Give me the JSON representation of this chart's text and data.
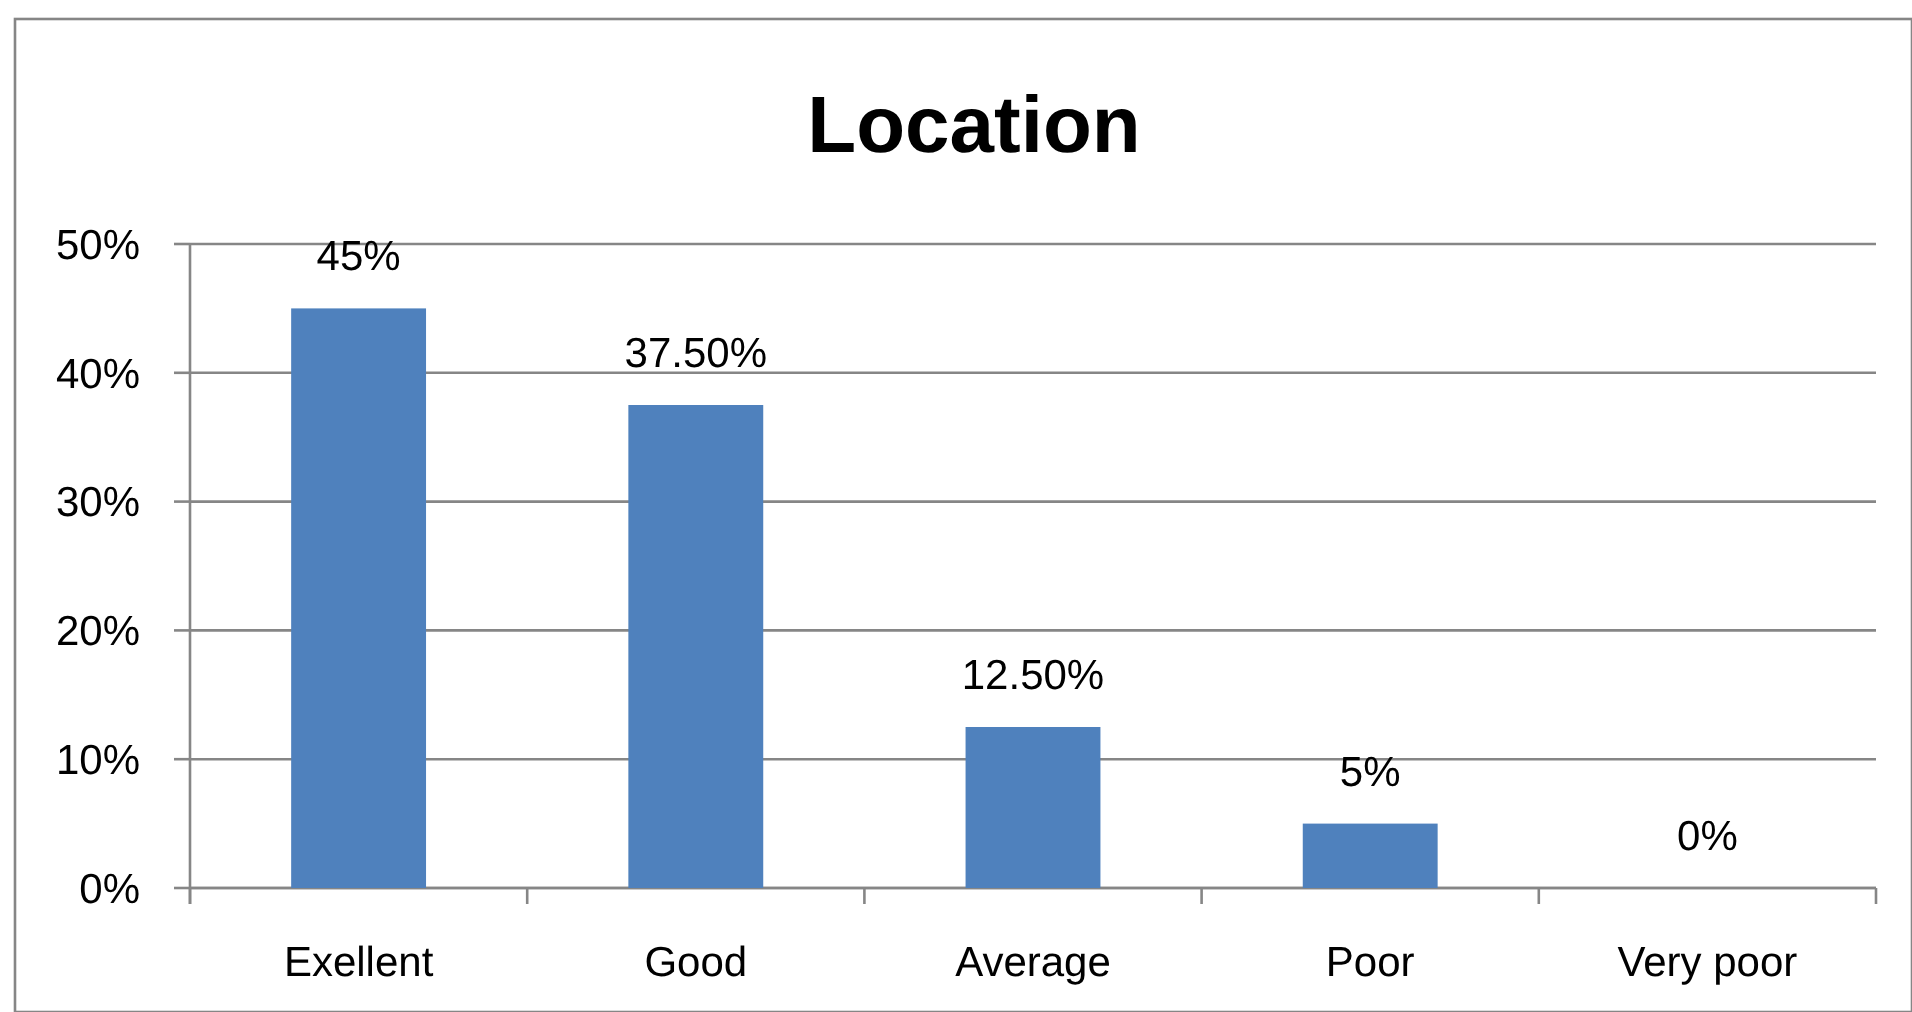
{
  "chart_data": {
    "type": "bar",
    "title": "Location",
    "categories": [
      "Exellent",
      "Good",
      "Average",
      "Poor",
      "Very poor"
    ],
    "values": [
      45,
      37.5,
      12.5,
      5,
      0
    ],
    "color": "#4f81bd",
    "value_labels": [
      "45%",
      "37.50%",
      "12.50%",
      "5%",
      "0%"
    ],
    "ylim": [
      0,
      50
    ],
    "yticks": [
      {
        "value": 0,
        "label": "0%"
      },
      {
        "value": 10,
        "label": "10%"
      },
      {
        "value": 20,
        "label": "20%"
      },
      {
        "value": 30,
        "label": "30%"
      },
      {
        "value": 40,
        "label": "40%"
      },
      {
        "value": 50,
        "label": "50%"
      }
    ],
    "grid": "y"
  }
}
